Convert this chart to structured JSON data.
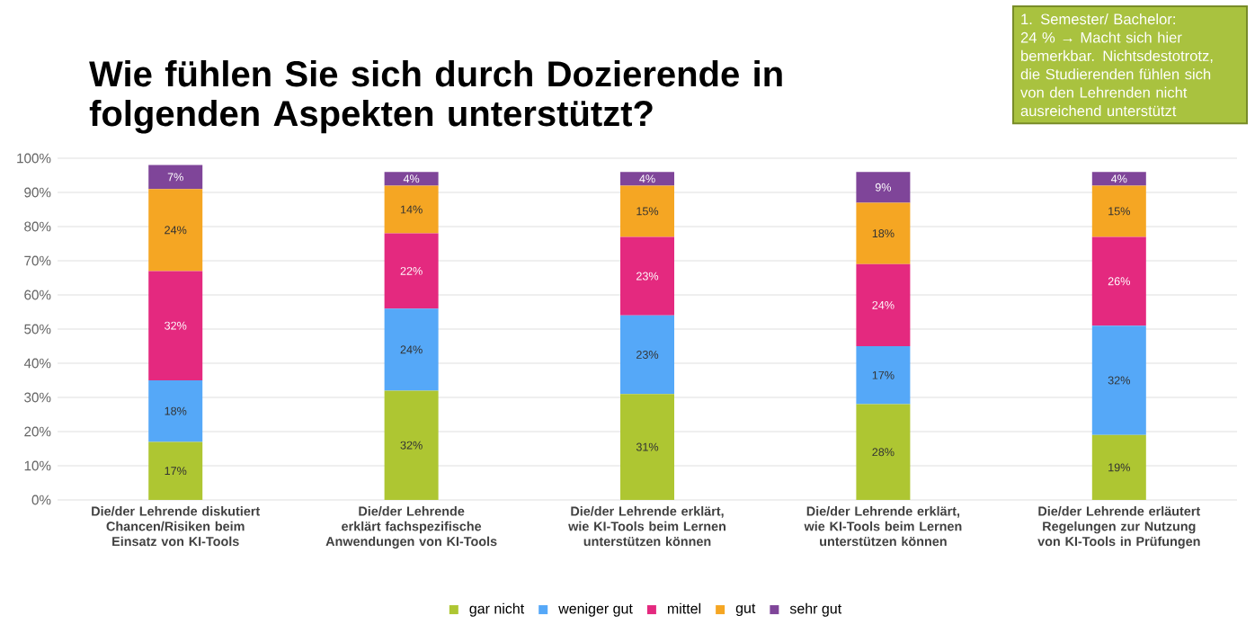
{
  "chart_data": {
    "type": "bar",
    "stacked": true,
    "title": "Wie fühlen Sie sich durch Dozierende in folgenden Aspekten unterstützt?",
    "annotations": [
      "1. Semester/ Bachelor: 24 % → Macht sich hier bemerkbar. Nichtsdestotrotz, die Studierenden fühlen sich von den Lehrenden nicht ausreichend unterstützt"
    ],
    "categories": [
      "Die/der Lehrende diskutiert Chancen/Risiken beim Einsatz von KI-Tools",
      "Die/der Lehrende erklärt fachspezifische Anwendungen von KI-Tools",
      "Die/der Lehrende erklärt, wie KI-Tools beim Lernen unterstützen können",
      "Die/der Lehrende erklärt, wie KI-Tools beim Lernen unterstützen können",
      "Die/der Lehrende erläutert Regelungen zur Nutzung von KI-Tools in Prüfungen"
    ],
    "series": [
      {
        "name": "gar nicht",
        "color": "#aec632",
        "values": [
          17,
          32,
          31,
          28,
          19
        ],
        "value_labels": [
          "17%",
          "32%",
          "31%",
          "28%",
          "19%"
        ]
      },
      {
        "name": "weniger gut",
        "color": "#55a8f8",
        "values": [
          18,
          24,
          23,
          17,
          32
        ],
        "value_labels": [
          "18%",
          "24%",
          "23%",
          "17%",
          "32%"
        ]
      },
      {
        "name": "mittel",
        "color": "#e4297f",
        "values": [
          32,
          22,
          23,
          24,
          26
        ],
        "value_labels": [
          "32%",
          "22%",
          "23%",
          "24%",
          "26%"
        ]
      },
      {
        "name": "gut",
        "color": "#f5a623",
        "values": [
          24,
          14,
          15,
          18,
          15
        ],
        "value_labels": [
          "24%",
          "14%",
          "15%",
          "18%",
          "15%"
        ]
      },
      {
        "name": "sehr gut",
        "color": "#7f4599",
        "values": [
          7,
          4,
          4,
          9,
          4
        ],
        "value_labels": [
          "7%",
          "4%",
          "4%",
          "9%",
          "4%"
        ]
      }
    ],
    "ylim": [
      0,
      100
    ],
    "yticks": [
      {
        "value": 0,
        "label": "0%"
      },
      {
        "value": 10,
        "label": "10%"
      },
      {
        "value": 20,
        "label": "20%"
      },
      {
        "value": 30,
        "label": "30%"
      },
      {
        "value": 40,
        "label": "40%"
      },
      {
        "value": 50,
        "label": "50%"
      },
      {
        "value": 60,
        "label": "60%"
      },
      {
        "value": 70,
        "label": "70%"
      },
      {
        "value": 80,
        "label": "80%"
      },
      {
        "value": 90,
        "label": "90%"
      },
      {
        "value": 100,
        "label": "100%"
      }
    ],
    "grid": "y",
    "legend": "bottom"
  }
}
